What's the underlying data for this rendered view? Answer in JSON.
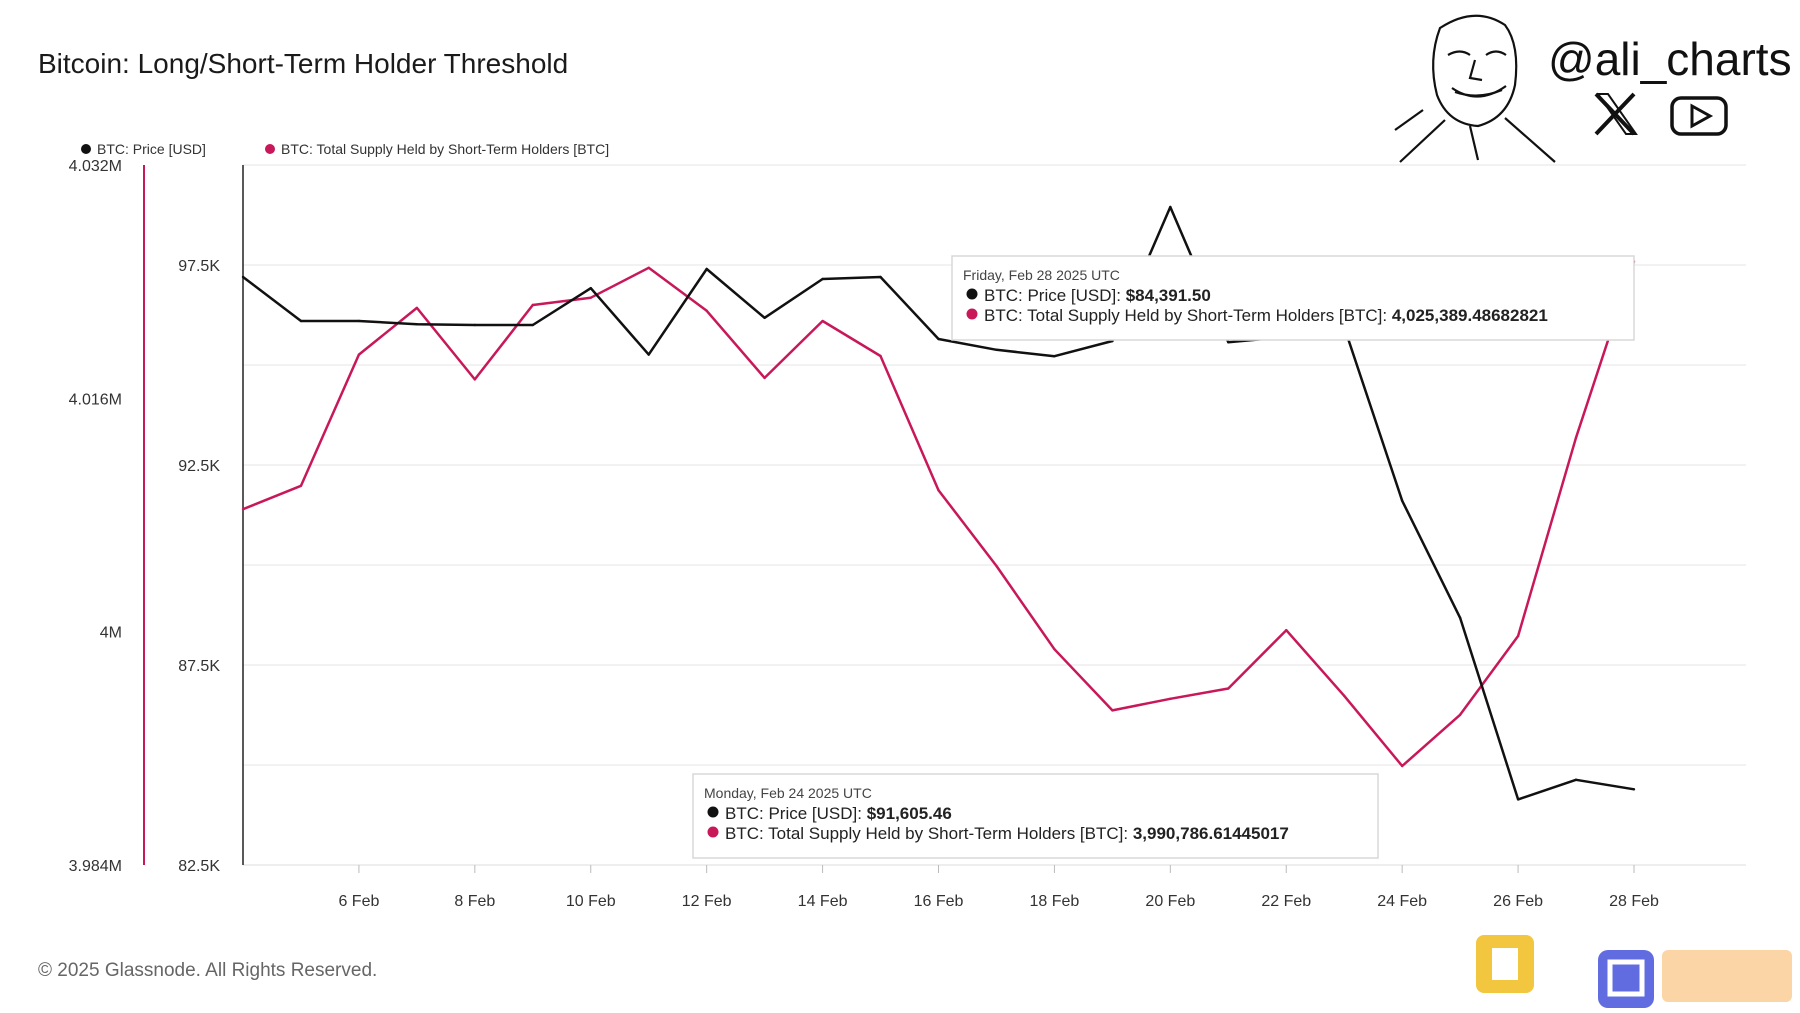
{
  "brand": {
    "handle": "@ali_charts",
    "icons": [
      "x-logo-icon",
      "youtube-icon"
    ]
  },
  "footer": {
    "copyright": "© 2025 Glassnode. All Rights Reserved."
  },
  "colors": {
    "price": "#111111",
    "supply": "#c8185a",
    "grid": "#e4e4e4",
    "left_axis_line": "#c8185a"
  },
  "tooltips": [
    {
      "date": "Friday, Feb 28 2025 UTC",
      "price_label": "BTC: Price [USD]:",
      "price_value": "$84,391.50",
      "supply_label": "BTC: Total Supply Held by Short-Term Holders [BTC]:",
      "supply_value": "4,025,389.48682821"
    },
    {
      "date": "Monday, Feb 24 2025 UTC",
      "price_label": "BTC: Price [USD]:",
      "price_value": "$91,605.46",
      "supply_label": "BTC: Total Supply Held by Short-Term Holders [BTC]:",
      "supply_value": "3,990,786.61445017"
    }
  ],
  "chart_data": {
    "type": "line",
    "title": "Bitcoin: Long/Short-Term Holder Threshold",
    "legend": [
      "BTC: Price [USD]",
      "BTC: Total Supply Held by Short-Term Holders [BTC]"
    ],
    "legend_position": "top-left",
    "grid": true,
    "x": [
      "4 Feb",
      "5 Feb",
      "6 Feb",
      "7 Feb",
      "8 Feb",
      "9 Feb",
      "10 Feb",
      "11 Feb",
      "12 Feb",
      "13 Feb",
      "14 Feb",
      "15 Feb",
      "16 Feb",
      "17 Feb",
      "18 Feb",
      "19 Feb",
      "20 Feb",
      "21 Feb",
      "22 Feb",
      "23 Feb",
      "24 Feb",
      "25 Feb",
      "26 Feb",
      "27 Feb",
      "28 Feb"
    ],
    "x_ticks": [
      "6 Feb",
      "8 Feb",
      "10 Feb",
      "12 Feb",
      "14 Feb",
      "16 Feb",
      "18 Feb",
      "20 Feb",
      "22 Feb",
      "24 Feb",
      "26 Feb",
      "28 Feb"
    ],
    "y_right_axis": {
      "ticks": [
        "97.5K",
        "92.5K",
        "87.5K",
        "82.5K"
      ],
      "tick_values": [
        97500,
        92500,
        87500,
        82500
      ],
      "range": [
        82500,
        100000
      ]
    },
    "y_left_axis": {
      "ticks": [
        "4.032M",
        "4.016M",
        "4M",
        "3.984M"
      ],
      "tick_values": [
        4032000,
        4016000,
        4000000,
        3984000
      ],
      "range": [
        3984000,
        4032000
      ]
    },
    "series": [
      {
        "name": "BTC: Price [USD]",
        "axis": "price",
        "values": [
          97200,
          96100,
          96100,
          96020,
          96000,
          96000,
          96920,
          95260,
          97400,
          96180,
          97150,
          97200,
          95650,
          95380,
          95220,
          95600,
          98950,
          95570,
          95700,
          95950,
          91605.46,
          88680,
          84140,
          84630,
          84391.5
        ]
      },
      {
        "name": "BTC: Total Supply Held by Short-Term Holders [BTC]",
        "axis": "supply",
        "values": [
          4008400,
          4010000,
          4019000,
          4022200,
          4017300,
          4022400,
          4022900,
          4024950,
          4022000,
          4017400,
          4021300,
          4018900,
          4009700,
          4004500,
          3998800,
          3994600,
          3995400,
          3996100,
          4000100,
          3995600,
          3990786.61,
          3994300,
          3999700,
          4013300,
          4025389.49
        ]
      }
    ]
  }
}
